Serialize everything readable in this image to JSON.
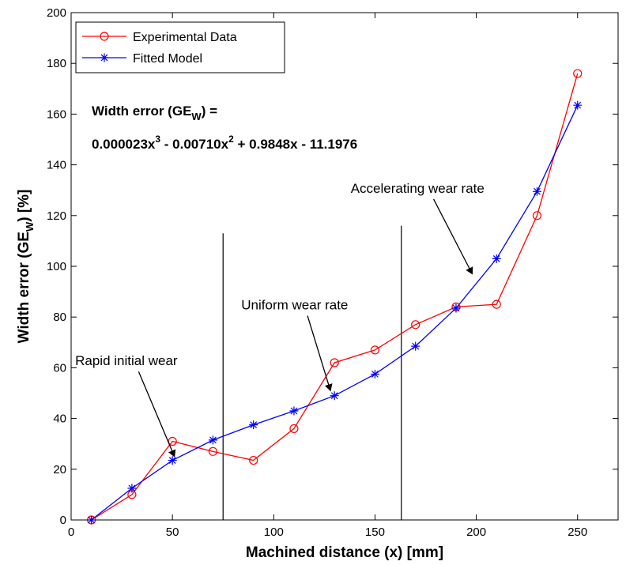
{
  "chart_data": {
    "type": "line",
    "xlabel": "Machined distance (x) [mm]",
    "ylabel": "Width error (GE",
    "ylabel_sub": "W",
    "ylabel_end": ") [%]",
    "xlim": [
      0,
      270
    ],
    "ylim": [
      0,
      200
    ],
    "xticks": [
      0,
      50,
      100,
      150,
      200,
      250
    ],
    "yticks": [
      0,
      20,
      40,
      60,
      80,
      100,
      120,
      140,
      160,
      180,
      200
    ],
    "grid": false,
    "legend_position": "top-left",
    "series": [
      {
        "name": "Experimental Data",
        "color": "#ff0000",
        "marker": "circle",
        "x": [
          10,
          30,
          50,
          70,
          90,
          110,
          130,
          150,
          170,
          190,
          210,
          230,
          250
        ],
        "values": [
          0,
          10,
          31,
          27,
          23.5,
          36,
          62,
          67,
          77,
          84,
          85,
          120,
          176
        ]
      },
      {
        "name": "Fitted Model",
        "color": "#0000ff",
        "marker": "star",
        "x": [
          10,
          30,
          50,
          70,
          90,
          110,
          130,
          150,
          170,
          190,
          210,
          230,
          250
        ],
        "values": [
          0,
          12.5,
          23.5,
          31.5,
          37.5,
          43,
          49,
          57.5,
          68.5,
          83.5,
          103,
          129.5,
          163.5
        ]
      }
    ],
    "vertical_lines": [
      {
        "x": 75,
        "y_top": 113
      },
      {
        "x": 163,
        "y_top": 116
      }
    ],
    "equation": {
      "line1_main": "Width error (GE",
      "line1_sub": "W",
      "line1_end": ") =",
      "line2_a": "0.000023x",
      "line2_sup1": "3",
      "line2_b": " - 0.00710x",
      "line2_sup2": "2",
      "line2_c": " + 0.9848x - 11.1976"
    },
    "annotations": [
      {
        "text": "Rapid initial wear",
        "label_x": 2,
        "label_y": 61,
        "tip_x": 51,
        "tip_y": 25
      },
      {
        "text": "Uniform wear rate",
        "label_x": 84,
        "label_y": 83,
        "tip_x": 128,
        "tip_y": 51
      },
      {
        "text": "Accelerating wear rate",
        "label_x": 138,
        "label_y": 129,
        "tip_x": 198,
        "tip_y": 97
      }
    ]
  }
}
